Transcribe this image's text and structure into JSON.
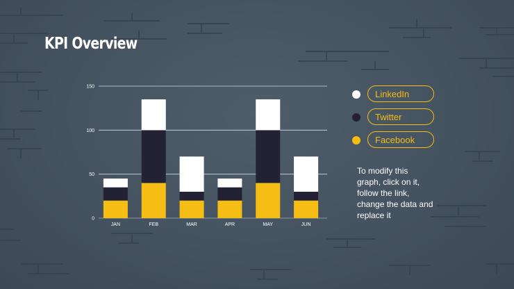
{
  "slide": {
    "title": "KPI Overview",
    "note": "To modify this graph, click on it, follow the link, change the data and replace it"
  },
  "colors": {
    "background": "#4a5764",
    "accent": "#f6bd14",
    "linkedin": "#ffffff",
    "twitter": "#232234",
    "facebook": "#f6bd14"
  },
  "chart_data": {
    "type": "bar",
    "stacked": true,
    "categories": [
      "JAN",
      "FEB",
      "MAR",
      "APR",
      "MAY",
      "JUN"
    ],
    "series": [
      {
        "name": "Facebook",
        "color": "#f6bd14",
        "values": [
          20,
          40,
          20,
          20,
          40,
          20
        ]
      },
      {
        "name": "Twitter",
        "color": "#232234",
        "values": [
          15,
          60,
          10,
          15,
          60,
          10
        ]
      },
      {
        "name": "LinkedIn",
        "color": "#ffffff",
        "values": [
          10,
          35,
          40,
          10,
          35,
          40
        ]
      }
    ],
    "ylim": [
      0,
      150
    ],
    "yticks": [
      0,
      50,
      100,
      150
    ],
    "title": "",
    "xlabel": "",
    "ylabel": "",
    "grid": true,
    "legend": [
      {
        "label": "LinkedIn",
        "color": "#ffffff"
      },
      {
        "label": "Twitter",
        "color": "#232234"
      },
      {
        "label": "Facebook",
        "color": "#f6bd14"
      }
    ],
    "legend_position": "right"
  }
}
